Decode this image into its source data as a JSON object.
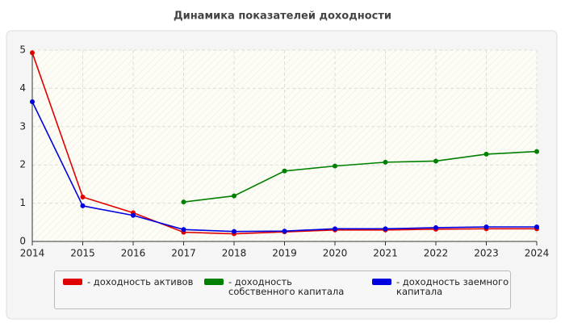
{
  "chart_data": {
    "type": "line",
    "title": "Динамика показателей доходности",
    "x": [
      2014,
      2015,
      2016,
      2017,
      2018,
      2019,
      2020,
      2021,
      2022,
      2023,
      2024
    ],
    "series": [
      {
        "name": "- доходность активов",
        "color": "#e00000",
        "values": [
          4.93,
          1.16,
          0.75,
          0.24,
          0.2,
          0.25,
          0.3,
          0.3,
          0.32,
          0.33,
          0.33
        ]
      },
      {
        "name": "- доходность собственного капитала",
        "color": "#008000",
        "values": [
          null,
          null,
          null,
          1.03,
          1.19,
          1.84,
          1.97,
          2.07,
          2.1,
          2.28,
          2.35
        ]
      },
      {
        "name": "- доходность заемного капитала",
        "color": "#0000e0",
        "values": [
          3.65,
          0.93,
          0.68,
          0.31,
          0.26,
          0.27,
          0.33,
          0.33,
          0.36,
          0.38,
          0.38
        ]
      }
    ],
    "xlim": [
      2014,
      2024
    ],
    "xticks": [
      2014,
      2015,
      2016,
      2017,
      2018,
      2019,
      2020,
      2021,
      2022,
      2023,
      2024
    ],
    "ylim": [
      0,
      5
    ],
    "yticks": [
      0,
      1,
      2,
      3,
      4,
      5
    ],
    "grid": true
  }
}
